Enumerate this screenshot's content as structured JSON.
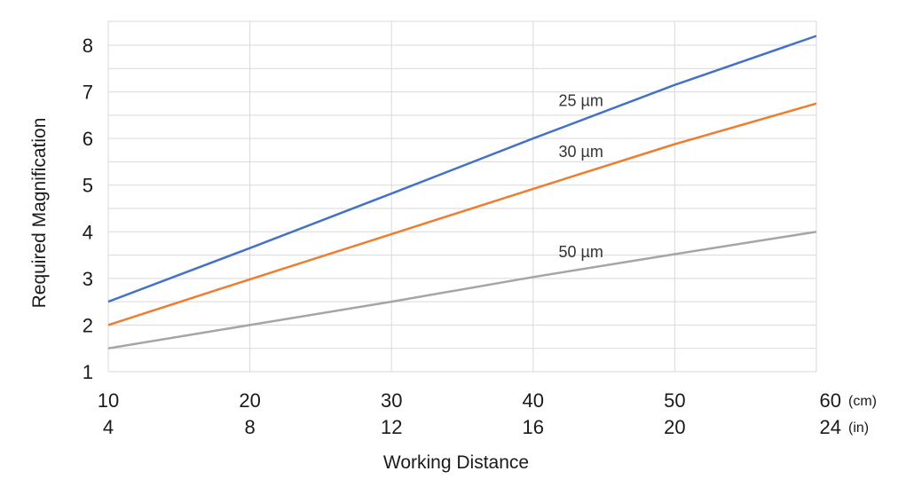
{
  "chart_data": {
    "type": "line",
    "xlabel": "Working Distance",
    "ylabel": "Required Magnification",
    "xlim": [
      10,
      60
    ],
    "ylim": [
      1,
      8.4
    ],
    "grid": true,
    "x_ticks_primary": [
      "10",
      "20",
      "30",
      "40",
      "50",
      "60"
    ],
    "x_ticks_primary_unit": "(cm)",
    "x_ticks_secondary": [
      "4",
      "8",
      "12",
      "16",
      "20",
      "24"
    ],
    "x_ticks_secondary_unit": "(in)",
    "y_ticks": [
      "1",
      "2",
      "3",
      "4",
      "5",
      "6",
      "7",
      "8"
    ],
    "series": [
      {
        "name": "25 µm",
        "x": [
          10,
          20,
          30,
          40,
          50,
          60
        ],
        "values": [
          2.5,
          3.65,
          4.82,
          6.0,
          7.15,
          8.2
        ],
        "color": "#4472c4",
        "label_at": [
          41.8,
          6.7
        ]
      },
      {
        "name": "30 µm",
        "x": [
          10,
          20,
          30,
          40,
          50,
          60
        ],
        "values": [
          2.0,
          2.98,
          3.95,
          4.92,
          5.88,
          6.75
        ],
        "color": "#ed7d31",
        "label_at": [
          41.8,
          5.6
        ]
      },
      {
        "name": "50 µm",
        "x": [
          10,
          20,
          30,
          40,
          50,
          60
        ],
        "values": [
          1.5,
          2.0,
          2.5,
          3.03,
          3.52,
          4.0
        ],
        "color": "#a5a5a5",
        "label_at": [
          41.8,
          3.45
        ]
      }
    ]
  }
}
